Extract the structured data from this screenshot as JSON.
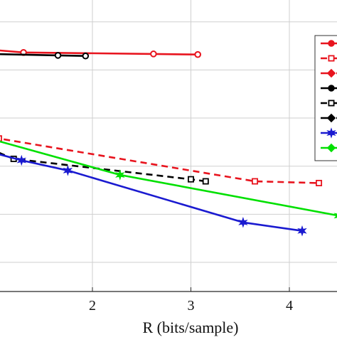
{
  "chart_data": {
    "type": "line",
    "xlabel": "R (bits/sample)",
    "x_ticks": [
      "2",
      "3",
      "4"
    ],
    "xlim": [
      0.95,
      4.5
    ],
    "ylim": [
      0,
      1
    ],
    "grid": true,
    "legend": "top-right (cropped)",
    "series": [
      {
        "color": "#e8141e",
        "dash": "solid",
        "marker": "circle-open",
        "x": [
          0.95,
          1.3,
          2.62,
          3.07
        ],
        "y": [
          0.83,
          0.82,
          0.815,
          0.813
        ]
      },
      {
        "color": "#000000",
        "dash": "solid",
        "marker": "circle-open",
        "x": [
          0.95,
          1.65,
          1.93
        ],
        "y": [
          0.815,
          0.81,
          0.808
        ]
      },
      {
        "color": "#e8141e",
        "dash": "dashed",
        "marker": "square-open",
        "x": [
          0.95,
          1.05,
          3.65,
          4.3
        ],
        "y": [
          0.57,
          0.525,
          0.378,
          0.372
        ]
      },
      {
        "color": "#000000",
        "dash": "dashed",
        "marker": "square-open",
        "x": [
          0.95,
          1.2,
          3.0,
          3.15
        ],
        "y": [
          0.49,
          0.455,
          0.385,
          0.378
        ]
      },
      {
        "color": "#00e000",
        "dash": "solid",
        "marker": "star",
        "x": [
          0.95,
          2.28,
          4.5
        ],
        "y": [
          0.525,
          0.4,
          0.26
        ]
      },
      {
        "color": "#1a1ad0",
        "dash": "solid",
        "marker": "star",
        "x": [
          0.95,
          1.28,
          1.75,
          3.53,
          4.13
        ],
        "y": [
          0.48,
          0.45,
          0.415,
          0.237,
          0.208
        ]
      }
    ],
    "legend_entries": [
      {
        "color": "#e8141e",
        "dash": "solid",
        "marker": "circle-filled"
      },
      {
        "color": "#e8141e",
        "dash": "dashed",
        "marker": "square-open"
      },
      {
        "color": "#e8141e",
        "dash": "dashdot",
        "marker": "diamond-filled"
      },
      {
        "color": "#000000",
        "dash": "solid",
        "marker": "circle-filled"
      },
      {
        "color": "#000000",
        "dash": "dashed",
        "marker": "square-open"
      },
      {
        "color": "#000000",
        "dash": "dashdot",
        "marker": "diamond-filled"
      },
      {
        "color": "#1a1ad0",
        "dash": "solid",
        "marker": "star"
      },
      {
        "color": "#00e000",
        "dash": "solid",
        "marker": "diamond-filled"
      }
    ]
  }
}
